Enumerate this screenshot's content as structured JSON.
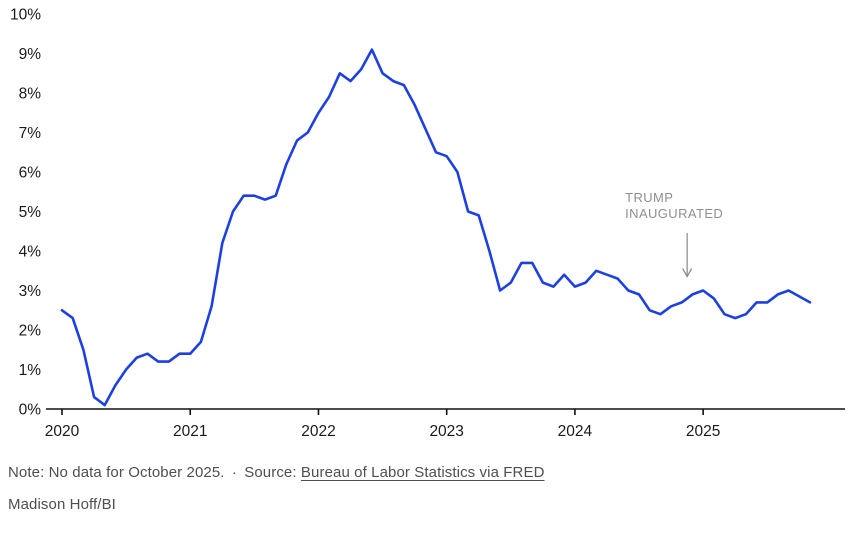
{
  "chart_data": {
    "type": "line",
    "title": "",
    "x_start_month": "2020-01",
    "x_end_month": "2025-11",
    "missing_months": [
      "2025-10"
    ],
    "x_tick_labels": [
      "2020",
      "2021",
      "2022",
      "2023",
      "2024",
      "2025"
    ],
    "y_tick_labels": [
      "0%",
      "1%",
      "2%",
      "3%",
      "4%",
      "5%",
      "6%",
      "7%",
      "8%",
      "9%",
      "10%"
    ],
    "ylim": [
      0,
      10
    ],
    "grid": false,
    "line_color": "#1d41e0",
    "axis_color": "#111111",
    "annotation_color": "#8f8f8f",
    "values": [
      2.5,
      2.3,
      1.5,
      0.3,
      0.1,
      0.6,
      1.0,
      1.3,
      1.4,
      1.2,
      1.2,
      1.4,
      1.4,
      1.7,
      2.6,
      4.2,
      5.0,
      5.4,
      5.4,
      5.3,
      5.4,
      6.2,
      6.8,
      7.0,
      7.5,
      7.9,
      8.5,
      8.3,
      8.6,
      9.1,
      8.5,
      8.3,
      8.2,
      7.7,
      7.1,
      6.5,
      6.4,
      6.0,
      5.0,
      4.9,
      4.0,
      3.0,
      3.2,
      3.7,
      3.7,
      3.2,
      3.1,
      3.4,
      3.1,
      3.2,
      3.5,
      3.4,
      3.3,
      3.0,
      2.9,
      2.5,
      2.4,
      2.6,
      2.7,
      2.9,
      3.0,
      2.8,
      2.4,
      2.3,
      2.4,
      2.7,
      2.7,
      2.9,
      3.0,
      null,
      2.7
    ],
    "annotation": {
      "lines": [
        "TRUMP",
        "INAUGURATED"
      ],
      "month_index": 60,
      "points_to_value": 3.0
    }
  },
  "footer": {
    "note": "Note: No data for October 2025.",
    "separator": "·",
    "source_label": "Source:",
    "source_link_text": "Bureau of Labor Statistics via FRED",
    "credit": "Madison Hoff/BI"
  }
}
